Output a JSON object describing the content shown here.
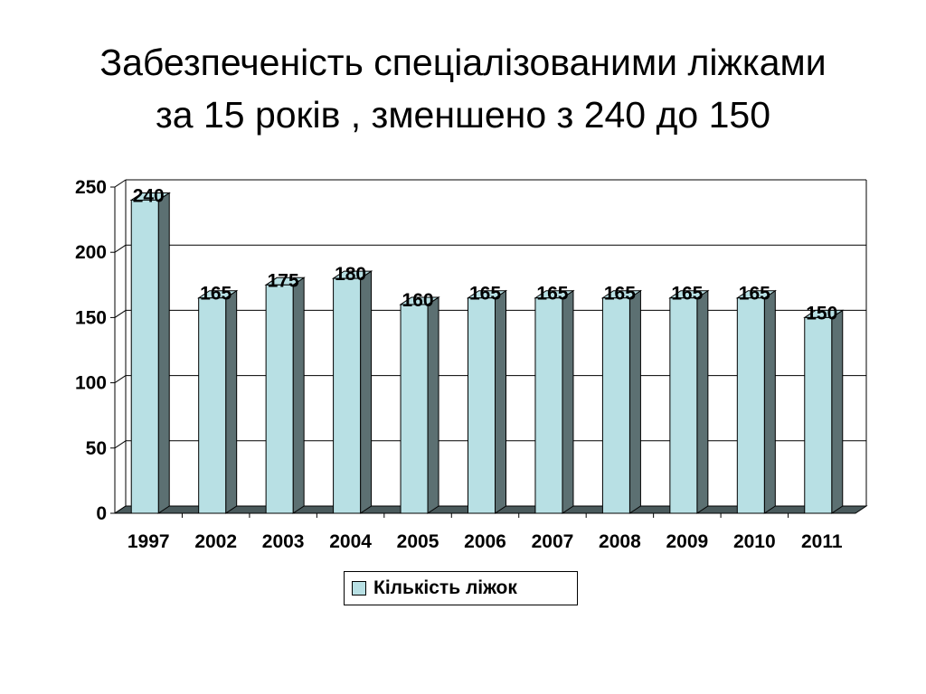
{
  "slide": {
    "title_line1": "Забезпеченість спеціалізованими ліжками",
    "title_line2": "за 15 років , зменшено з 240 до 150"
  },
  "chart_data": {
    "type": "bar",
    "categories": [
      "1997",
      "2002",
      "2003",
      "2004",
      "2005",
      "2006",
      "2007",
      "2008",
      "2009",
      "2010",
      "2011"
    ],
    "series": [
      {
        "name": "Кількість ліжок",
        "values": [
          240,
          165,
          175,
          180,
          160,
          165,
          165,
          165,
          165,
          165,
          150
        ]
      }
    ],
    "ylim": [
      0,
      250
    ],
    "yticks": [
      "0",
      "50",
      "100",
      "150",
      "200",
      "250"
    ],
    "grid": true,
    "legend_position": "bottom",
    "colors": {
      "bar_front": "#b8e0e4",
      "bar_side": "#5c7072",
      "floor": "#4a5a5c",
      "grid": "#000000"
    }
  }
}
